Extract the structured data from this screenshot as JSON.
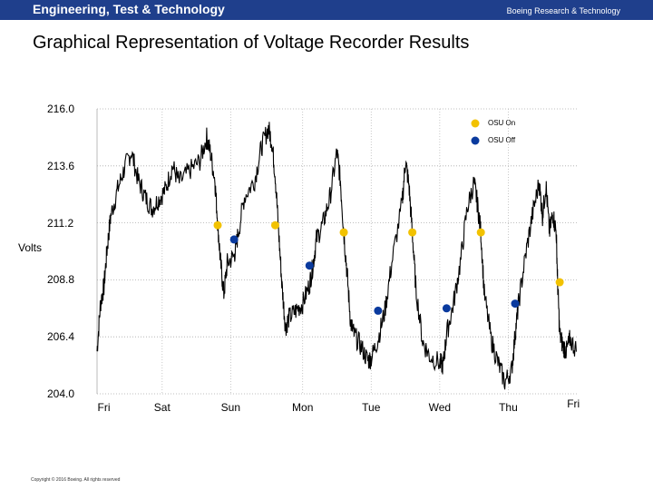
{
  "header": {
    "brand": "Engineering, Test & Technology",
    "unit": "Boeing Research & Technology"
  },
  "page_title": "Graphical Representation of Voltage Recorder Results",
  "copyright": "Copyright © 2016 Boeing. All rights reserved",
  "colors": {
    "header_bg": "#1f3f8c",
    "osu_on": "#f2c200",
    "osu_off": "#0a3a9e",
    "trace": "#000000"
  },
  "chart_data": {
    "type": "line",
    "ylabel": "Volts",
    "ylim": [
      204.0,
      216.0
    ],
    "yticks": [
      "216.0",
      "213.6",
      "211.2",
      "208.8",
      "206.4",
      "204.0"
    ],
    "ytick_values": [
      216.0,
      213.6,
      211.2,
      208.8,
      206.4,
      204.0
    ],
    "xlim": [
      0,
      7
    ],
    "xticks": [
      "Fri",
      "Sat",
      "Sun",
      "Mon",
      "Tue",
      "Wed",
      "Thu",
      "Fri"
    ],
    "xtick_values": [
      0.1,
      0.95,
      1.95,
      3.0,
      4.0,
      5.0,
      6.0,
      6.95
    ],
    "grid": true,
    "legend": [
      {
        "name": "OSU On"
      },
      {
        "name": "OSU Off"
      }
    ],
    "legend_position": "top-right",
    "series": [
      {
        "name": "OSU On",
        "marker_only": true,
        "points": [
          [
            1.76,
            211.1
          ],
          [
            2.6,
            211.1
          ],
          [
            3.6,
            210.8
          ],
          [
            4.6,
            210.8
          ],
          [
            5.6,
            210.8
          ],
          [
            6.75,
            208.7
          ]
        ]
      },
      {
        "name": "OSU Off",
        "marker_only": true,
        "points": [
          [
            2.0,
            210.5
          ],
          [
            3.1,
            209.4
          ],
          [
            4.1,
            207.5
          ],
          [
            5.1,
            207.6
          ],
          [
            6.1,
            207.8
          ]
        ]
      },
      {
        "name": "Voltage",
        "points": [
          [
            0.0,
            205.8
          ],
          [
            0.05,
            207.8
          ],
          [
            0.1,
            208.5
          ],
          [
            0.15,
            210.2
          ],
          [
            0.2,
            211.5
          ],
          [
            0.3,
            212.6
          ],
          [
            0.4,
            213.5
          ],
          [
            0.5,
            214.2
          ],
          [
            0.6,
            213.0
          ],
          [
            0.7,
            212.3
          ],
          [
            0.8,
            211.8
          ],
          [
            0.9,
            212.2
          ],
          [
            1.0,
            212.6
          ],
          [
            1.1,
            213.6
          ],
          [
            1.2,
            212.9
          ],
          [
            1.35,
            213.4
          ],
          [
            1.5,
            213.8
          ],
          [
            1.6,
            214.8
          ],
          [
            1.65,
            214.2
          ],
          [
            1.72,
            213.0
          ],
          [
            1.76,
            211.2
          ],
          [
            1.8,
            209.6
          ],
          [
            1.85,
            208.2
          ],
          [
            1.9,
            209.5
          ],
          [
            2.0,
            209.8
          ],
          [
            2.05,
            210.6
          ],
          [
            2.15,
            212.3
          ],
          [
            2.3,
            213.0
          ],
          [
            2.4,
            214.4
          ],
          [
            2.5,
            215.2
          ],
          [
            2.55,
            214.6
          ],
          [
            2.6,
            213.2
          ],
          [
            2.65,
            210.8
          ],
          [
            2.7,
            208.5
          ],
          [
            2.75,
            206.8
          ],
          [
            2.8,
            207.2
          ],
          [
            2.9,
            207.5
          ],
          [
            3.0,
            207.8
          ],
          [
            3.1,
            208.6
          ],
          [
            3.15,
            209.4
          ],
          [
            3.2,
            210.5
          ],
          [
            3.3,
            211.2
          ],
          [
            3.4,
            212.3
          ],
          [
            3.5,
            214.2
          ],
          [
            3.55,
            213.0
          ],
          [
            3.6,
            210.8
          ],
          [
            3.65,
            209.0
          ],
          [
            3.7,
            207.0
          ],
          [
            3.75,
            206.5
          ],
          [
            3.85,
            206.0
          ],
          [
            3.95,
            205.4
          ],
          [
            4.0,
            205.5
          ],
          [
            4.1,
            206.3
          ],
          [
            4.2,
            207.5
          ],
          [
            4.3,
            209.5
          ],
          [
            4.45,
            212.0
          ],
          [
            4.5,
            213.8
          ],
          [
            4.55,
            212.8
          ],
          [
            4.6,
            210.8
          ],
          [
            4.65,
            208.5
          ],
          [
            4.75,
            206.2
          ],
          [
            4.85,
            205.6
          ],
          [
            5.0,
            205.3
          ],
          [
            5.05,
            205.2
          ],
          [
            5.1,
            206.5
          ],
          [
            5.2,
            207.8
          ],
          [
            5.3,
            209.5
          ],
          [
            5.4,
            211.8
          ],
          [
            5.5,
            212.9
          ],
          [
            5.55,
            212.0
          ],
          [
            5.6,
            210.8
          ],
          [
            5.65,
            208.2
          ],
          [
            5.75,
            206.3
          ],
          [
            5.85,
            205.3
          ],
          [
            5.95,
            204.5
          ],
          [
            6.05,
            205.0
          ],
          [
            6.1,
            206.5
          ],
          [
            6.15,
            207.8
          ],
          [
            6.25,
            209.8
          ],
          [
            6.35,
            211.5
          ],
          [
            6.45,
            212.9
          ],
          [
            6.5,
            211.5
          ],
          [
            6.55,
            212.8
          ],
          [
            6.6,
            210.8
          ],
          [
            6.65,
            211.6
          ],
          [
            6.7,
            210.8
          ],
          [
            6.72,
            208.7
          ],
          [
            6.75,
            206.5
          ],
          [
            6.8,
            206.0
          ],
          [
            6.85,
            205.8
          ],
          [
            6.9,
            206.3
          ],
          [
            7.0,
            205.8
          ]
        ]
      }
    ]
  }
}
